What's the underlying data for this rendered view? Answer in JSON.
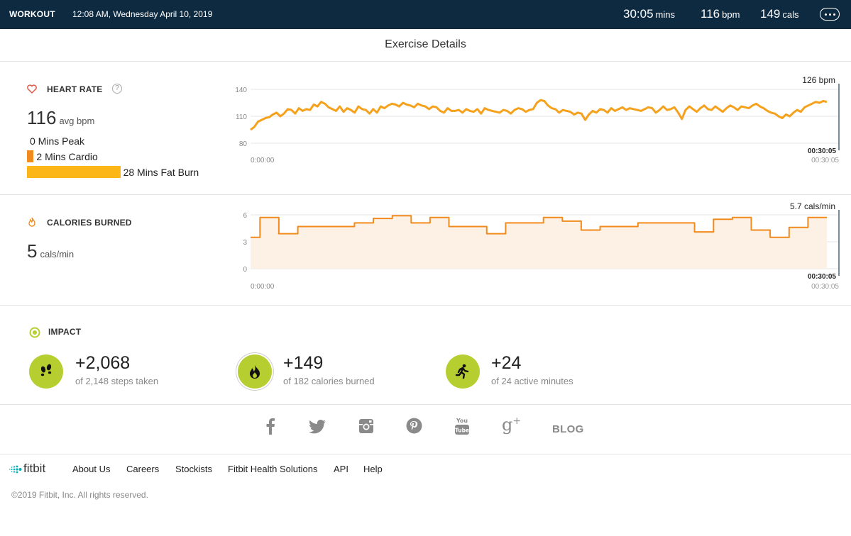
{
  "header": {
    "title": "WORKOUT",
    "datetime": "12:08 AM, Wednesday April 10, 2019",
    "duration_value": "30:05",
    "duration_unit": "mins",
    "bpm_value": "116",
    "bpm_unit": "bpm",
    "cals_value": "149",
    "cals_unit": "cals",
    "more_icon": "more-ellipsis-icon"
  },
  "page_title": "Exercise Details",
  "heart_rate": {
    "label": "HEART RATE",
    "help_glyph": "?",
    "avg_value": "116",
    "avg_unit": "avg bpm",
    "zones": [
      {
        "text": "0 Mins Peak",
        "minutes": 0,
        "color": "#e8413b"
      },
      {
        "text": "2 Mins Cardio",
        "minutes": 2,
        "color": "#f28b1e"
      },
      {
        "text": "28 Mins Fat Burn",
        "minutes": 28,
        "color": "#fdb618"
      }
    ]
  },
  "calories": {
    "label": "CALORIES BURNED",
    "value": "5",
    "unit": "cals/min"
  },
  "chart_data": [
    {
      "type": "line",
      "title": "",
      "y_ticks": [
        "140",
        "110",
        "80"
      ],
      "ylim": [
        80,
        140
      ],
      "x_range_sec": [
        0,
        1805
      ],
      "x_start_label": "0:00:00",
      "x_end_label": "00:30:05",
      "cursor_time_label": "00:30:05",
      "cursor_value_label": "126 bpm",
      "color": "#f5a11c",
      "series": [
        {
          "values": [
            95,
            98,
            104,
            106,
            108,
            109,
            112,
            114,
            110,
            113,
            118,
            117,
            113,
            119,
            116,
            118,
            117,
            123,
            121,
            126,
            124,
            120,
            118,
            116,
            121,
            115,
            119,
            117,
            114,
            121,
            118,
            117,
            113,
            118,
            114,
            121,
            119,
            122,
            124,
            123,
            121,
            125,
            123,
            122,
            120,
            124,
            122,
            121,
            118,
            121,
            120,
            116,
            114,
            119,
            116,
            116,
            117,
            114,
            118,
            116,
            115,
            118,
            113,
            119,
            117,
            116,
            115,
            114,
            117,
            116,
            113,
            117,
            119,
            118,
            115,
            117,
            118,
            125,
            128,
            127,
            122,
            119,
            118,
            114,
            117,
            116,
            115,
            112,
            114,
            113,
            106,
            112,
            116,
            114,
            118,
            117,
            114,
            119,
            116,
            118,
            120,
            117,
            119,
            118,
            117,
            116,
            118,
            120,
            119,
            114,
            117,
            121,
            117,
            118,
            120,
            114,
            107,
            117,
            121,
            118,
            115,
            119,
            122,
            118,
            117,
            121,
            118,
            115,
            119,
            122,
            120,
            117,
            121,
            120,
            119,
            122,
            124,
            121,
            119,
            116,
            114,
            113,
            110,
            108,
            112,
            110,
            114,
            117,
            115,
            120,
            122,
            124,
            126,
            125,
            127,
            126
          ]
        }
      ]
    },
    {
      "type": "line",
      "title": "",
      "y_ticks": [
        "6",
        "3",
        "0"
      ],
      "ylim": [
        0,
        6
      ],
      "x_range_sec": [
        0,
        1805
      ],
      "x_start_label": "0:00:00",
      "x_end_label": "00:30:05",
      "cursor_time_label": "00:30:05",
      "cursor_value_label": "5.7 cals/min",
      "color": "#f28b1e",
      "series": [
        {
          "values": [
            3.5,
            5.7,
            5.7,
            3.9,
            3.9,
            4.7,
            4.7,
            4.7,
            4.7,
            4.7,
            4.7,
            5.1,
            5.1,
            5.6,
            5.6,
            5.9,
            5.9,
            5.1,
            5.1,
            5.7,
            5.7,
            4.7,
            4.7,
            4.7,
            4.7,
            3.9,
            3.9,
            5.1,
            5.1,
            5.1,
            5.1,
            5.7,
            5.7,
            5.3,
            5.3,
            4.3,
            4.3,
            4.7,
            4.7,
            4.7,
            4.7,
            5.1,
            5.1,
            5.1,
            5.1,
            5.1,
            5.1,
            4.1,
            4.1,
            5.5,
            5.5,
            5.7,
            5.7,
            4.3,
            4.3,
            3.5,
            3.5,
            4.6,
            4.6,
            5.7,
            5.7
          ]
        }
      ]
    }
  ],
  "impact": {
    "label": "IMPACT",
    "items": [
      {
        "icon": "footsteps-icon",
        "value": "+2,068",
        "sub": "of 2,148 steps taken"
      },
      {
        "icon": "flame-icon",
        "value": "+149",
        "sub": "of 182 calories burned"
      },
      {
        "icon": "runner-icon",
        "value": "+24",
        "sub": "of 24 active minutes"
      }
    ]
  },
  "social": {
    "icons": [
      "facebook-icon",
      "twitter-icon",
      "instagram-icon",
      "pinterest-icon",
      "youtube-icon",
      "google-plus-icon"
    ],
    "blog_label": "BLOG"
  },
  "footer": {
    "logo_text": "fitbit",
    "links": [
      "About Us",
      "Careers",
      "Stockists",
      "Fitbit Health Solutions",
      "API",
      "Help"
    ],
    "copyright": "©2019 Fitbit, Inc. All rights reserved."
  }
}
